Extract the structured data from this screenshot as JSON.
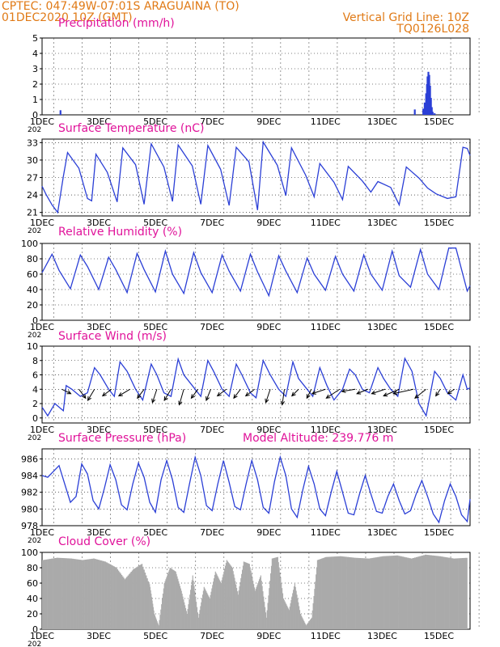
{
  "header": {
    "line1": "CPTEC:   047:49W-07:01S   ARAGUAINA (TO)",
    "line2": "01DEC2020 10Z (GMT)",
    "right1": "Vertical Grid Line: 10Z",
    "right2": "TQ0126L028"
  },
  "colors": {
    "header": "#e07a16",
    "title": "#e0139a",
    "line": "#2b3fd6",
    "cloud": "#aaaaaa",
    "arrow": "#000000"
  },
  "x_axis": {
    "ticks": [
      "1DEC",
      "3DEC",
      "5DEC",
      "7DEC",
      "9DEC",
      "11DEC",
      "13DEC",
      "15DEC"
    ],
    "tick_days": [
      1,
      3,
      5,
      7,
      9,
      11,
      13,
      15
    ],
    "range": [
      1,
      16.1
    ],
    "cut_label": "202"
  },
  "chart_data": [
    {
      "id": "precip",
      "type": "bar",
      "title": "Precipitation (mm/h)",
      "ylim": [
        0,
        5
      ],
      "yticks": [
        0,
        1,
        2,
        3,
        4,
        5
      ],
      "x": [
        1.65,
        14.15,
        14.45,
        14.5,
        14.55,
        14.58,
        14.6,
        14.63,
        14.66,
        14.69,
        14.72,
        14.75,
        14.78,
        14.85
      ],
      "values": [
        0.3,
        0.35,
        0.4,
        0.8,
        1.4,
        2.0,
        2.5,
        2.8,
        2.6,
        1.9,
        1.1,
        0.5,
        0.2,
        0.1
      ]
    },
    {
      "id": "temp",
      "type": "line",
      "title": "Surface Temperature (nC)",
      "ylim": [
        20.4,
        33.6
      ],
      "yticks": [
        21,
        24,
        27,
        30,
        33
      ],
      "x": [
        1.0,
        1.15,
        1.35,
        1.55,
        1.75,
        1.9,
        2.3,
        2.6,
        2.75,
        2.9,
        3.3,
        3.65,
        3.85,
        4.3,
        4.6,
        4.85,
        5.3,
        5.6,
        5.8,
        6.3,
        6.6,
        6.85,
        7.3,
        7.6,
        7.85,
        8.3,
        8.6,
        8.8,
        9.3,
        9.6,
        9.8,
        10.3,
        10.6,
        10.8,
        11.3,
        11.6,
        11.8,
        12.3,
        12.6,
        12.85,
        13.3,
        13.6,
        13.85,
        14.3,
        14.6,
        14.9,
        15.3,
        15.6,
        15.85,
        16.0,
        16.1
      ],
      "values": [
        25.5,
        24.0,
        22.3,
        21.0,
        27.2,
        31.3,
        28.6,
        23.4,
        23.0,
        31.0,
        27.9,
        22.8,
        32.1,
        29.2,
        22.4,
        32.8,
        28.8,
        22.9,
        32.6,
        29.0,
        22.4,
        32.5,
        28.4,
        22.2,
        32.2,
        29.7,
        21.4,
        33.1,
        29.1,
        23.9,
        32.1,
        27.4,
        23.7,
        29.4,
        26.2,
        23.2,
        28.9,
        26.4,
        24.5,
        26.3,
        25.3,
        22.3,
        28.8,
        26.9,
        25.2,
        24.2,
        23.4,
        23.7,
        32.2,
        32.0,
        30.8
      ]
    },
    {
      "id": "rh",
      "type": "line",
      "title": "Relative Humidity (%)",
      "ylim": [
        0,
        100
      ],
      "yticks": [
        0,
        20,
        40,
        60,
        80,
        100
      ],
      "x": [
        1.0,
        1.35,
        1.6,
        2.0,
        2.35,
        2.6,
        3.0,
        3.35,
        3.6,
        4.0,
        4.35,
        4.6,
        5.0,
        5.35,
        5.6,
        6.0,
        6.35,
        6.6,
        7.0,
        7.35,
        7.6,
        8.0,
        8.35,
        8.6,
        9.0,
        9.35,
        9.6,
        10.0,
        10.35,
        10.6,
        11.0,
        11.35,
        11.6,
        12.0,
        12.35,
        12.6,
        13.0,
        13.35,
        13.6,
        14.0,
        14.35,
        14.6,
        15.0,
        15.35,
        15.6,
        16.0,
        16.1
      ],
      "values": [
        62,
        86,
        65,
        41,
        85,
        70,
        40,
        82,
        66,
        36,
        87,
        66,
        37,
        90,
        60,
        35,
        88,
        62,
        36,
        85,
        64,
        38,
        86,
        63,
        32,
        84,
        64,
        36,
        81,
        60,
        39,
        83,
        60,
        38,
        85,
        60,
        39,
        90,
        58,
        43,
        92,
        60,
        40,
        94,
        94,
        38,
        45
      ]
    },
    {
      "id": "wind",
      "type": "line",
      "title": "Surface Wind (m/s)",
      "ylim": [
        -0.7,
        10
      ],
      "yticks": [
        0,
        2,
        4,
        6,
        8,
        10
      ],
      "x": [
        1.0,
        1.2,
        1.45,
        1.75,
        1.85,
        2.05,
        2.35,
        2.6,
        2.85,
        3.05,
        3.35,
        3.55,
        3.75,
        4.0,
        4.3,
        4.55,
        4.85,
        5.05,
        5.3,
        5.55,
        5.8,
        6.0,
        6.3,
        6.6,
        6.85,
        7.05,
        7.35,
        7.6,
        7.85,
        8.05,
        8.35,
        8.55,
        8.8,
        9.05,
        9.35,
        9.6,
        9.85,
        10.05,
        10.35,
        10.55,
        10.8,
        11.05,
        11.3,
        11.6,
        11.85,
        12.05,
        12.3,
        12.55,
        12.85,
        13.05,
        13.3,
        13.55,
        13.8,
        14.05,
        14.3,
        14.55,
        14.85,
        15.05,
        15.3,
        15.6,
        15.85,
        16.0,
        16.1
      ],
      "values": [
        1.5,
        0.3,
        2.0,
        1.0,
        4.5,
        4.0,
        3.0,
        3.5,
        7.0,
        6.0,
        4.0,
        3.0,
        7.8,
        6.5,
        4.0,
        2.5,
        7.5,
        6.0,
        3.5,
        3.0,
        8.2,
        6.0,
        4.5,
        3.0,
        8.0,
        6.5,
        4.0,
        3.0,
        7.5,
        6.0,
        3.5,
        2.8,
        8.0,
        6.0,
        4.0,
        3.0,
        7.8,
        5.5,
        4.0,
        3.0,
        7.0,
        4.5,
        2.5,
        4.0,
        6.8,
        6.0,
        4.0,
        3.5,
        7.0,
        5.5,
        4.0,
        3.0,
        8.3,
        6.5,
        2.0,
        0.3,
        6.5,
        5.5,
        3.5,
        2.5,
        6.0,
        4.0,
        4.2
      ],
      "arrows": {
        "x": [
          1.7,
          2.3,
          2.85,
          3.45,
          4.1,
          4.6,
          5.05,
          5.55,
          6.0,
          6.5,
          6.95,
          7.5,
          8.0,
          8.5,
          9.05,
          9.55,
          10.05,
          10.5,
          11.0,
          11.5,
          12.05,
          12.5,
          13.1,
          13.6,
          14.1,
          14.55,
          15.05,
          15.55
        ],
        "wind_u": [
          2.0,
          1.5,
          -1.5,
          -2.0,
          -2.5,
          -1.5,
          -1.0,
          -1.5,
          -1.0,
          -1.5,
          -1.0,
          -2.0,
          -1.5,
          -2.0,
          -1.0,
          -0.5,
          -1.5,
          -1.0,
          -3.0,
          -3.0,
          -3.0,
          -2.5,
          -3.0,
          -3.5,
          -4.5,
          -2.5,
          -1.0,
          -1.5
        ],
        "wind_v": [
          -1.0,
          -2.0,
          -2.5,
          -1.5,
          -1.5,
          -2.0,
          -3.0,
          -2.5,
          -3.5,
          -2.0,
          -2.5,
          -1.5,
          -2.0,
          -1.5,
          -3.0,
          -3.5,
          -1.5,
          -2.0,
          -1.0,
          -2.0,
          -0.5,
          -1.0,
          -1.0,
          -1.5,
          -1.0,
          -2.0,
          -1.5,
          -1.0
        ]
      }
    },
    {
      "id": "pres",
      "type": "line",
      "title": "Surface Pressure (hPa)",
      "annotation": "Model Altitude: 239.776 m",
      "ylim": [
        978,
        987.2
      ],
      "yticks": [
        978,
        980,
        982,
        984,
        986
      ],
      "x": [
        1.0,
        1.2,
        1.4,
        1.6,
        1.8,
        2.0,
        2.2,
        2.4,
        2.6,
        2.8,
        3.0,
        3.2,
        3.4,
        3.6,
        3.8,
        4.0,
        4.2,
        4.4,
        4.6,
        4.8,
        5.0,
        5.2,
        5.4,
        5.6,
        5.8,
        6.0,
        6.2,
        6.4,
        6.6,
        6.8,
        7.0,
        7.2,
        7.4,
        7.6,
        7.8,
        8.0,
        8.2,
        8.4,
        8.6,
        8.8,
        9.0,
        9.2,
        9.4,
        9.6,
        9.8,
        10.0,
        10.2,
        10.4,
        10.6,
        10.8,
        11.0,
        11.2,
        11.4,
        11.6,
        11.8,
        12.0,
        12.2,
        12.4,
        12.6,
        12.8,
        13.0,
        13.2,
        13.4,
        13.6,
        13.8,
        14.0,
        14.2,
        14.4,
        14.6,
        14.8,
        15.0,
        15.2,
        15.4,
        15.6,
        15.8,
        16.0,
        16.1
      ],
      "values": [
        984.0,
        983.8,
        984.5,
        985.2,
        983.0,
        980.8,
        981.5,
        985.4,
        984.2,
        981.0,
        980.0,
        982.5,
        985.3,
        983.5,
        980.5,
        979.9,
        983.0,
        985.5,
        983.8,
        980.8,
        979.6,
        983.5,
        985.8,
        983.5,
        980.2,
        979.6,
        983.0,
        986.2,
        984.0,
        980.4,
        979.8,
        983.0,
        985.8,
        983.2,
        980.3,
        979.9,
        983.0,
        985.8,
        983.5,
        980.2,
        979.5,
        983.3,
        986.2,
        984.0,
        980.0,
        979.0,
        982.3,
        985.1,
        983.0,
        980.0,
        979.2,
        982.0,
        984.5,
        982.0,
        979.5,
        979.3,
        981.8,
        984.0,
        981.8,
        979.7,
        979.5,
        981.5,
        983.0,
        981.0,
        979.4,
        979.8,
        981.8,
        983.4,
        981.5,
        979.4,
        978.4,
        981.0,
        983.0,
        981.5,
        979.3,
        978.5,
        981.2
      ]
    },
    {
      "id": "cloud",
      "type": "bar",
      "title": "Cloud Cover (%)",
      "ylim": [
        0,
        100
      ],
      "yticks": [
        0,
        20,
        40,
        60,
        80,
        100
      ],
      "x": [
        1.0,
        1.5,
        2.0,
        2.4,
        2.8,
        3.2,
        3.6,
        3.9,
        4.2,
        4.5,
        4.8,
        4.95,
        5.1,
        5.3,
        5.5,
        5.7,
        5.9,
        6.1,
        6.3,
        6.5,
        6.7,
        6.9,
        7.1,
        7.3,
        7.5,
        7.7,
        7.9,
        8.1,
        8.3,
        8.5,
        8.7,
        8.9,
        9.1,
        9.3,
        9.5,
        9.7,
        9.9,
        10.1,
        10.3,
        10.5,
        10.7,
        11.0,
        11.5,
        12.0,
        12.5,
        13.0,
        13.5,
        14.0,
        14.5,
        15.0,
        15.5,
        16.0
      ],
      "values": [
        90,
        93,
        92,
        90,
        92,
        88,
        80,
        65,
        78,
        85,
        55,
        20,
        5,
        60,
        80,
        75,
        50,
        20,
        70,
        15,
        55,
        40,
        75,
        60,
        90,
        80,
        45,
        88,
        85,
        50,
        70,
        15,
        92,
        94,
        40,
        25,
        60,
        20,
        5,
        15,
        90,
        94,
        95,
        93,
        92,
        95,
        96,
        92,
        97,
        95,
        92,
        93
      ]
    }
  ]
}
